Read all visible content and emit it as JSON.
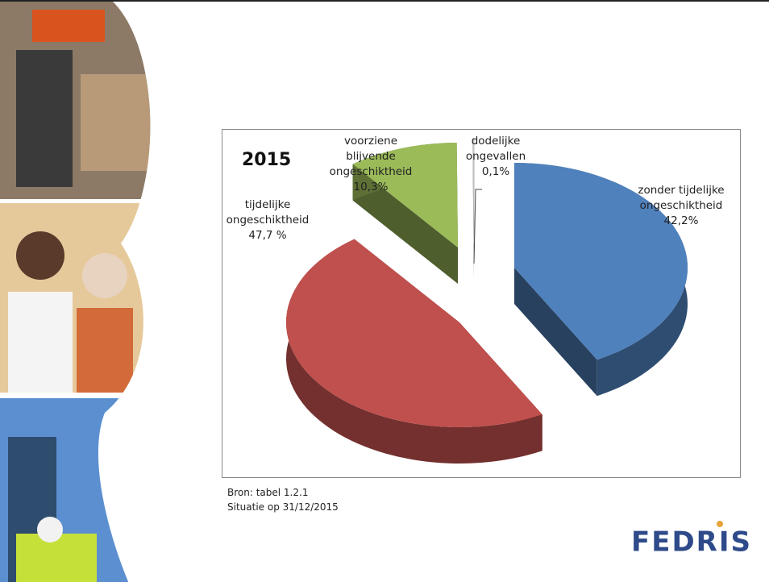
{
  "chart_data": {
    "type": "pie",
    "title": "2015",
    "categories": [
      "zonder tijdelijke ongeschiktheid",
      "tijdelijke ongeschiktheid",
      "voorziene blijvende ongeschiktheid",
      "dodelijke ongevallen"
    ],
    "values": [
      42.2,
      47.7,
      10.3,
      0.1
    ],
    "value_labels": [
      "42,2%",
      "47,7 %",
      "10,3%",
      "0,1%"
    ],
    "colors": [
      "#4f81bd",
      "#c0504d",
      "#9bbb59",
      "#f2f2f2"
    ]
  },
  "footer": {
    "source": "Bron: tabel 1.2.1",
    "date": "Situatie op 31/12/2015"
  },
  "logo": "FEDRIS"
}
